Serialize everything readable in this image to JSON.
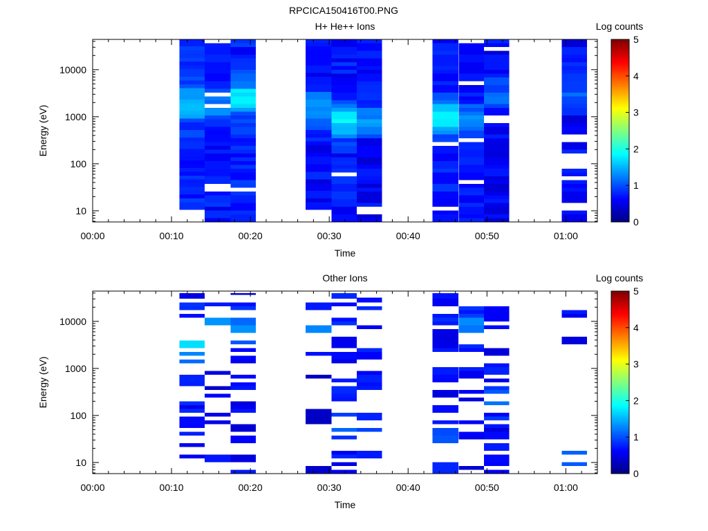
{
  "figure_title": "RPCICA150416T00.PNG",
  "colors": {
    "axis": "#000000",
    "background": "#ffffff"
  },
  "chart_data": [
    {
      "type": "heatmap",
      "title": "H+ He++ Ions",
      "xlabel": "Time",
      "ylabel": "Energy (eV)",
      "colorbar_label": "Log counts",
      "colorbar_ticks": [
        "0",
        "1",
        "2",
        "3",
        "4",
        "5"
      ],
      "colorbar_range": [
        0,
        5
      ],
      "colormap": "jet",
      "x_tick_labels": [
        "00:00",
        "00:10",
        "00:20",
        "00:30",
        "00:40",
        "00:50",
        "01:00"
      ],
      "x_range_min": [
        0,
        64
      ],
      "y_scale": "log",
      "y_range": [
        5.8,
        44000
      ],
      "y_tick_labels": [
        "10",
        "100",
        "1000",
        "10000"
      ],
      "y_ticks": [
        10,
        100,
        1000,
        10000
      ],
      "seed": 7,
      "blocks": [
        {
          "start_min": 11.0,
          "end_min": 14.2,
          "emin": 10.5,
          "emax": 44000,
          "base": 0.65,
          "peak": 1.55,
          "peak_energy": 1800,
          "gap_prob": 0.04,
          "sparse": 0
        },
        {
          "start_min": 14.2,
          "end_min": 17.5,
          "emin": 5.8,
          "emax": 44000,
          "base": 0.55,
          "peak": 1.2,
          "peak_energy": 2000,
          "gap_prob": 0.06,
          "sparse": 0
        },
        {
          "start_min": 17.5,
          "end_min": 20.7,
          "emin": 5.8,
          "emax": 44000,
          "base": 0.6,
          "peak": 1.8,
          "peak_energy": 2500,
          "gap_prob": 0.01,
          "sparse": 0
        },
        {
          "start_min": 27.0,
          "end_min": 30.3,
          "emin": 10.5,
          "emax": 44000,
          "base": 0.5,
          "peak": 1.3,
          "peak_energy": 1500,
          "gap_prob": 0.08,
          "sparse": 0
        },
        {
          "start_min": 30.3,
          "end_min": 33.5,
          "emin": 5.8,
          "emax": 44000,
          "base": 0.55,
          "peak": 1.7,
          "peak_energy": 800,
          "gap_prob": 0.04,
          "sparse": 0
        },
        {
          "start_min": 33.5,
          "end_min": 36.7,
          "emin": 5.8,
          "emax": 44000,
          "base": 0.45,
          "peak": 1.2,
          "peak_energy": 900,
          "gap_prob": 0.08,
          "sparse": 0
        },
        {
          "start_min": 43.1,
          "end_min": 46.4,
          "emin": 5.8,
          "emax": 44000,
          "base": 0.6,
          "peak": 1.7,
          "peak_energy": 900,
          "gap_prob": 0.05,
          "sparse": 0
        },
        {
          "start_min": 46.4,
          "end_min": 49.6,
          "emin": 5.8,
          "emax": 44000,
          "base": 0.5,
          "peak": 1.1,
          "peak_energy": 1000,
          "gap_prob": 0.09,
          "sparse": 0
        },
        {
          "start_min": 49.6,
          "end_min": 52.8,
          "emin": 5.8,
          "emax": 44000,
          "base": 0.45,
          "peak": 1.05,
          "peak_energy": 3000,
          "gap_prob": 0.06,
          "sparse": 0
        },
        {
          "start_min": 59.5,
          "end_min": 62.7,
          "emin": 5.8,
          "emax": 44000,
          "base": 0.45,
          "peak": 1.0,
          "peak_energy": 4000,
          "gap_prob": 0.1,
          "sparse": 0
        }
      ]
    },
    {
      "type": "heatmap",
      "title": "Other Ions",
      "xlabel": "Time",
      "ylabel": "Energy (eV)",
      "colorbar_label": "Log counts",
      "colorbar_ticks": [
        "0",
        "1",
        "2",
        "3",
        "4",
        "5"
      ],
      "colorbar_range": [
        0,
        5
      ],
      "colormap": "jet",
      "x_tick_labels": [
        "00:00",
        "00:10",
        "00:20",
        "00:30",
        "00:40",
        "00:50",
        "01:00"
      ],
      "x_range_min": [
        0,
        64
      ],
      "y_scale": "log",
      "y_range": [
        5.8,
        44000
      ],
      "y_tick_labels": [
        "10",
        "100",
        "1000",
        "10000"
      ],
      "y_ticks": [
        10,
        100,
        1000,
        10000
      ],
      "seed": 19,
      "blocks": [
        {
          "start_min": 11.0,
          "end_min": 14.2,
          "emin": 5.8,
          "emax": 40000,
          "base": 0.55,
          "peak": 1.7,
          "peak_energy": 3200,
          "gap_prob": 0.3,
          "sparse": 0.55
        },
        {
          "start_min": 14.2,
          "end_min": 17.5,
          "emin": 5.8,
          "emax": 40000,
          "base": 0.4,
          "peak": 1.2,
          "peak_energy": 9000,
          "gap_prob": 0.5,
          "sparse": 0.55
        },
        {
          "start_min": 17.5,
          "end_min": 20.7,
          "emin": 5.8,
          "emax": 40000,
          "base": 0.45,
          "peak": 1.1,
          "peak_energy": 6000,
          "gap_prob": 0.2,
          "sparse": 0.6
        },
        {
          "start_min": 27.0,
          "end_min": 30.3,
          "emin": 5.8,
          "emax": 30000,
          "base": 0.35,
          "peak": 1.2,
          "peak_energy": 7000,
          "gap_prob": 0.45,
          "sparse": 0.6
        },
        {
          "start_min": 30.3,
          "end_min": 33.5,
          "emin": 5.8,
          "emax": 40000,
          "base": 0.5,
          "peak": 0.9,
          "peak_energy": 50,
          "gap_prob": 0.25,
          "sparse": 0.55
        },
        {
          "start_min": 33.5,
          "end_min": 36.7,
          "emin": 5.8,
          "emax": 32000,
          "base": 0.45,
          "peak": 0.95,
          "peak_energy": 60,
          "gap_prob": 0.35,
          "sparse": 0.6
        },
        {
          "start_min": 43.1,
          "end_min": 46.4,
          "emin": 5.8,
          "emax": 40000,
          "base": 0.5,
          "peak": 1.0,
          "peak_energy": 30,
          "gap_prob": 0.2,
          "sparse": 0.6
        },
        {
          "start_min": 46.4,
          "end_min": 49.6,
          "emin": 5.8,
          "emax": 40000,
          "base": 0.45,
          "peak": 1.05,
          "peak_energy": 8000,
          "gap_prob": 0.4,
          "sparse": 0.6
        },
        {
          "start_min": 49.6,
          "end_min": 52.8,
          "emin": 5.8,
          "emax": 32000,
          "base": 0.45,
          "peak": 0.9,
          "peak_energy": 200,
          "gap_prob": 0.3,
          "sparse": 0.6
        },
        {
          "start_min": 59.5,
          "end_min": 62.7,
          "emin": 5.8,
          "emax": 27000,
          "base": 0.5,
          "peak": 1.15,
          "peak_energy": 8,
          "gap_prob": 0.6,
          "sparse": 0.65
        }
      ]
    }
  ]
}
